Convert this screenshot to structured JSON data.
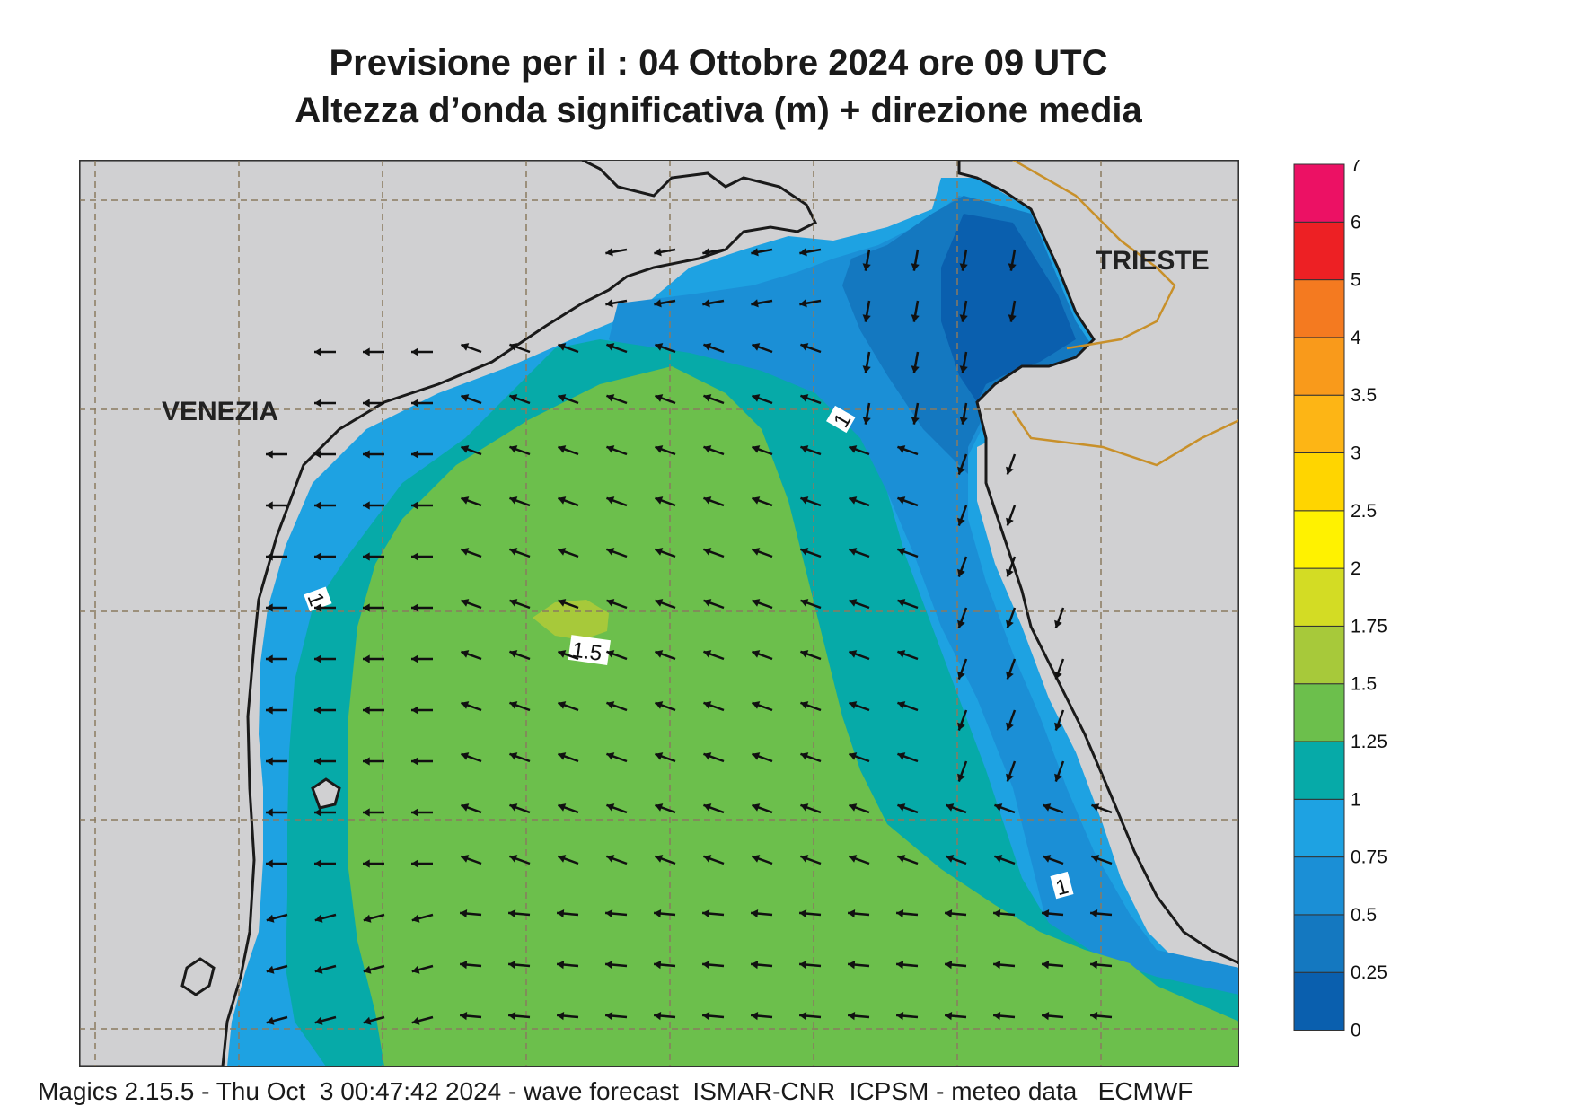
{
  "title": {
    "line1": "Previsione per il  :  04  Ottobre  2024   ore 09 UTC",
    "line2": "Altezza d’onda significativa (m) + direzione media"
  },
  "map": {
    "cities": [
      {
        "name": "VENEZIA",
        "key": "venezia"
      },
      {
        "name": "TRIESTE",
        "key": "trieste"
      }
    ],
    "contour_labels": [
      "1",
      "1",
      "1",
      "1.5"
    ],
    "colors": {
      "land": "#d0d0d2",
      "coast": "#1a1a1a",
      "graticule": "#8a7a60",
      "border": "#c8902a",
      "arrow": "#111111"
    }
  },
  "colorbar": {
    "levels": [
      "0",
      "0.25",
      "0.5",
      "0.75",
      "1",
      "1.25",
      "1.5",
      "1.75",
      "2",
      "2.5",
      "3",
      "3.5",
      "4",
      "5",
      "6",
      "7"
    ],
    "colors": [
      "#0a5fae",
      "#1478c0",
      "#1b8fd6",
      "#1ea2e2",
      "#06aaa8",
      "#6cbf4c",
      "#a7c93a",
      "#d3dc24",
      "#fff200",
      "#ffd500",
      "#fdb515",
      "#f99a1b",
      "#f47a20",
      "#ed2024",
      "#ec1164"
    ]
  },
  "footer": "Magics 2.15.5 - Thu Oct  3 00:47:42 2024 - wave forecast  ISMAR-CNR  ICPSM - meteo data   ECMWF"
}
